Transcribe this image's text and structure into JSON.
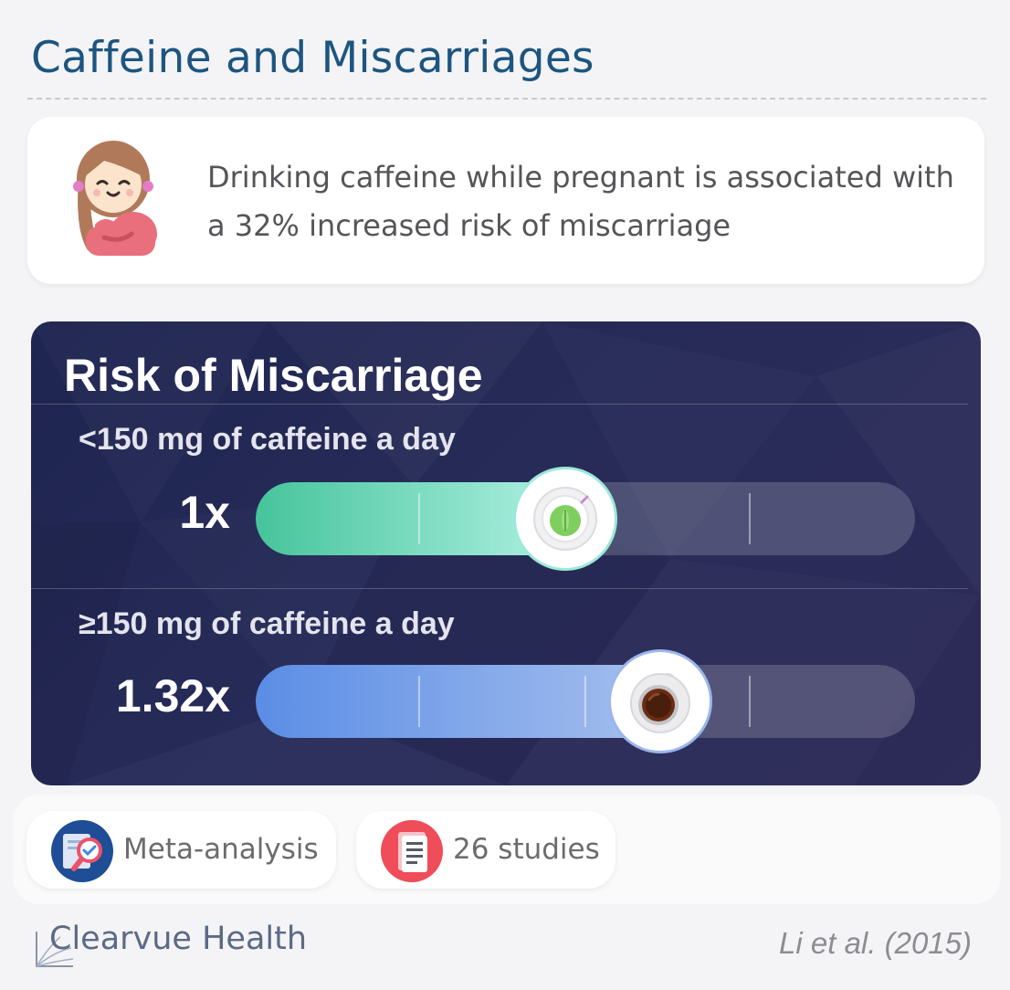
{
  "header": {
    "title": "Caffeine and Miscarriages"
  },
  "summary": {
    "icon": "pregnant-woman-icon",
    "text": "Drinking caffeine while pregnant is associated with a 32% increased risk of miscarriage"
  },
  "chart_data": {
    "type": "bar",
    "orientation": "horizontal",
    "title": "Risk of Miscarriage",
    "categories": [
      "<150 mg of caffeine a day",
      "≥150 mg of caffeine a day"
    ],
    "values": [
      1,
      1.32
    ],
    "value_labels": [
      "1x",
      "1.32x"
    ],
    "xlim": [
      0,
      2
    ],
    "grid": true,
    "markers": [
      "leaf-cup-icon",
      "coffee-cup-icon"
    ],
    "colors": [
      "#46c49b",
      "#5b8de6"
    ]
  },
  "badges": [
    {
      "label": "Meta-analysis",
      "icon": "magnifier-document-icon"
    },
    {
      "label": "26 studies",
      "icon": "document-stack-icon"
    }
  ],
  "footer": {
    "brand": "Clearvue Health",
    "citation": "Li et al. (2015)"
  }
}
